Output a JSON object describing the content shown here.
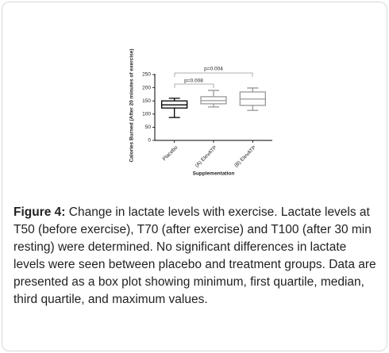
{
  "chart_data": {
    "type": "box",
    "y_label": "Calories Burned (After 20 minutes of exercise)",
    "x_label": "Supplementation",
    "categories": [
      "Placebo",
      "(A) ElevATP",
      "(B) ElevATP"
    ],
    "boxes": [
      {
        "min": 87,
        "q1": 123,
        "median": 135,
        "q3": 150,
        "max": 160
      },
      {
        "min": 127,
        "q1": 139,
        "median": 151,
        "q3": 166,
        "max": 190
      },
      {
        "min": 114,
        "q1": 133,
        "median": 157,
        "q3": 184,
        "max": 199
      }
    ],
    "colors": [
      "#000000",
      "#999999",
      "#999999"
    ],
    "ylim": [
      0,
      250
    ],
    "yticks": [
      0,
      50,
      100,
      150,
      200,
      250
    ],
    "annotations": [
      "p=0.008",
      "p=0.004"
    ]
  },
  "caption": {
    "label": "Figure 4:",
    "text": "Change in lactate levels with exercise. Lactate levels at T50 (before exercise), T70 (after exercise) and T100 (after 30 min resting) were determined. No significant differences in lactate levels were seen between placebo and treatment groups. Data are presented as a box plot showing minimum, first quartile, median, third quartile, and maximum values."
  }
}
